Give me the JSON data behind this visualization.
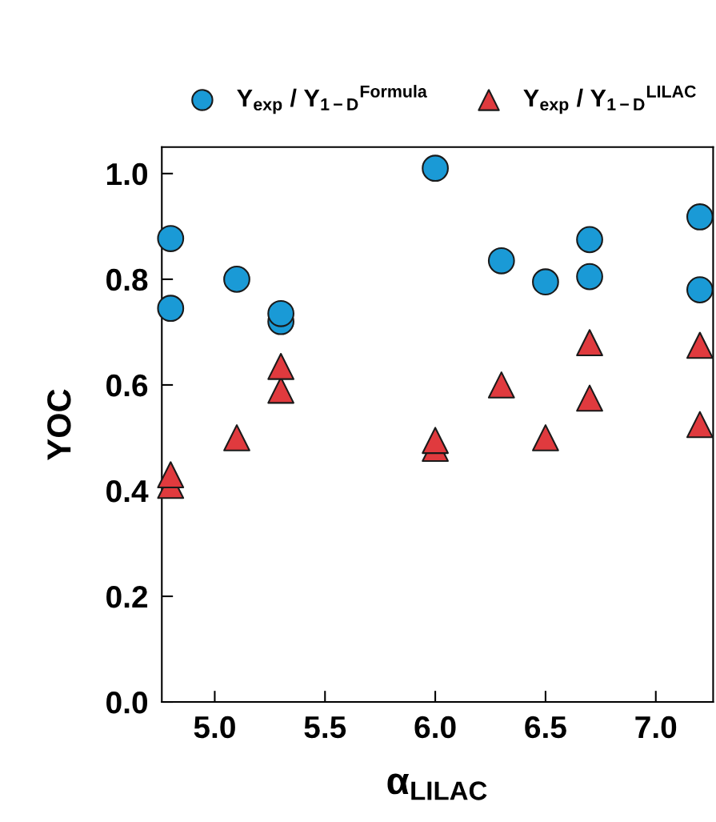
{
  "chart_data": {
    "type": "scatter",
    "xlabel": "α$_{LILAC}$",
    "ylabel": "YOC",
    "xlim": [
      4.76,
      7.26
    ],
    "xticks": [
      {
        "value": 5.0,
        "label": "5.0"
      },
      5.5,
      {
        "value": 6.0,
        "label": "6.0"
      },
      6.5,
      {
        "value": 7.0,
        "label": "7.0"
      }
    ],
    "ylim": [
      0,
      1.05
    ],
    "yticks": [
      {
        "value": 0,
        "label": "0.0"
      },
      0.2,
      0.4,
      0.6,
      0.8,
      {
        "value": 1.0,
        "label": "1.0"
      }
    ],
    "grid": false,
    "legend": "top",
    "series": [
      {
        "name": "Y$_{exp}$ / Y$_{1−D}$$^{Formula}$",
        "color": "#1a9ad6",
        "marker": "circle",
        "x": [
          4.8,
          4.8,
          5.1,
          5.3,
          5.3,
          6.0,
          6.3,
          6.5,
          6.7,
          6.7,
          7.2,
          7.2
        ],
        "values": [
          0.877,
          0.745,
          0.8,
          0.72,
          0.735,
          1.01,
          0.835,
          0.795,
          0.875,
          0.805,
          0.918,
          0.78
        ]
      },
      {
        "name": "Y$_{exp}$ / Y$_{1−D}$$^{LILAC}$",
        "color": "#e03a3e",
        "marker": "triangle",
        "x": [
          4.8,
          4.8,
          5.1,
          5.3,
          5.3,
          6.0,
          6.0,
          6.3,
          6.5,
          6.7,
          6.7,
          7.2,
          7.2
        ],
        "values": [
          0.41,
          0.43,
          0.5,
          0.59,
          0.635,
          0.48,
          0.495,
          0.6,
          0.5,
          0.575,
          0.68,
          0.525,
          0.675
        ]
      }
    ]
  }
}
